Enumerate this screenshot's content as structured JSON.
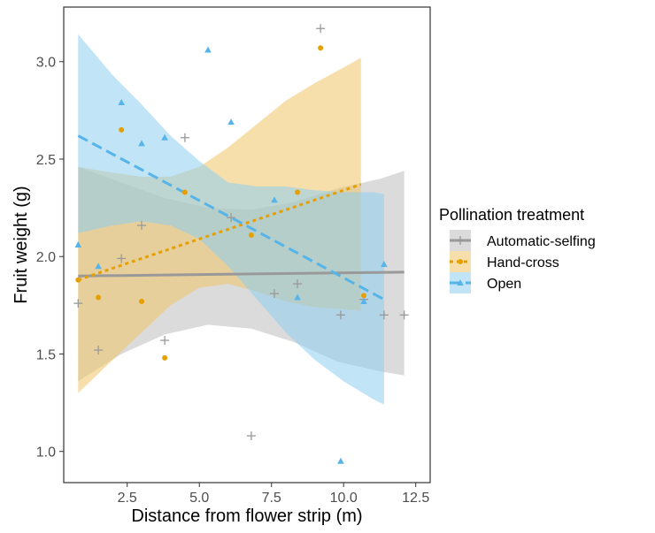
{
  "chart_data": {
    "type": "scatter",
    "xlabel": "Distance from flower strip (m)",
    "ylabel": "Fruit weight (g)",
    "xlim": [
      0.3,
      13.0
    ],
    "ylim": [
      0.84,
      3.28
    ],
    "x_ticks": [
      "2.5",
      "5.0",
      "7.5",
      "10.0",
      "12.5"
    ],
    "y_ticks": [
      "1.0",
      "1.5",
      "2.0",
      "2.5",
      "3.0"
    ],
    "grid": false,
    "legend": {
      "title": "Pollination treatment",
      "placement": "right"
    },
    "series": [
      {
        "name": "Automatic-selfing",
        "color": "#999999",
        "band_color": "#bdbdbd",
        "marker": "plus",
        "line_style": "solid",
        "points": [
          [
            0.8,
            1.76
          ],
          [
            1.5,
            1.52
          ],
          [
            2.3,
            1.99
          ],
          [
            3.0,
            2.16
          ],
          [
            3.8,
            1.57
          ],
          [
            4.5,
            2.61
          ],
          [
            6.1,
            2.2
          ],
          [
            6.8,
            1.08
          ],
          [
            7.6,
            1.81
          ],
          [
            8.4,
            1.86
          ],
          [
            9.2,
            3.17
          ],
          [
            9.9,
            1.7
          ],
          [
            10.7,
            1.78
          ],
          [
            11.4,
            1.7
          ],
          [
            12.1,
            1.7
          ]
        ],
        "fit": [
          [
            0.8,
            1.9
          ],
          [
            12.1,
            1.92
          ]
        ],
        "band": [
          [
            0.8,
            1.36,
            2.46
          ],
          [
            2.3,
            1.5,
            2.38
          ],
          [
            3.8,
            1.6,
            2.3
          ],
          [
            5.3,
            1.65,
            2.25
          ],
          [
            6.8,
            1.63,
            2.24
          ],
          [
            8.3,
            1.56,
            2.28
          ],
          [
            9.8,
            1.46,
            2.35
          ],
          [
            11.3,
            1.41,
            2.4
          ],
          [
            12.1,
            1.39,
            2.44
          ]
        ]
      },
      {
        "name": "Hand-cross",
        "color": "#e69f00",
        "band_color": "#f0c566",
        "marker": "circle",
        "line_style": "dotted",
        "points": [
          [
            0.8,
            1.88
          ],
          [
            1.5,
            1.79
          ],
          [
            2.3,
            2.65
          ],
          [
            3.0,
            1.77
          ],
          [
            3.8,
            1.48
          ],
          [
            4.5,
            2.33
          ],
          [
            6.8,
            2.11
          ],
          [
            8.4,
            2.33
          ],
          [
            9.2,
            3.07
          ],
          [
            10.7,
            1.8
          ]
        ],
        "fit": [
          [
            0.8,
            1.88
          ],
          [
            10.6,
            2.37
          ]
        ],
        "band": [
          [
            0.8,
            1.3,
            2.46
          ],
          [
            2.0,
            1.47,
            2.43
          ],
          [
            3.0,
            1.61,
            2.41
          ],
          [
            4.0,
            1.75,
            2.41
          ],
          [
            5.0,
            1.84,
            2.46
          ],
          [
            6.0,
            1.86,
            2.56
          ],
          [
            7.0,
            1.82,
            2.68
          ],
          [
            8.0,
            1.77,
            2.8
          ],
          [
            9.0,
            1.74,
            2.89
          ],
          [
            10.0,
            1.73,
            2.97
          ],
          [
            10.6,
            1.72,
            3.02
          ]
        ]
      },
      {
        "name": "Open",
        "color": "#56b4e9",
        "band_color": "#8ecdf0",
        "marker": "triangle",
        "line_style": "dashed",
        "points": [
          [
            0.8,
            2.06
          ],
          [
            1.5,
            1.95
          ],
          [
            2.3,
            2.79
          ],
          [
            3.0,
            2.58
          ],
          [
            3.8,
            2.61
          ],
          [
            5.3,
            3.06
          ],
          [
            6.1,
            2.69
          ],
          [
            7.6,
            2.29
          ],
          [
            8.4,
            1.79
          ],
          [
            9.9,
            0.95
          ],
          [
            10.7,
            1.77
          ],
          [
            11.4,
            1.96
          ]
        ],
        "fit": [
          [
            0.8,
            2.62
          ],
          [
            11.4,
            1.78
          ]
        ],
        "band": [
          [
            0.8,
            2.12,
            3.14
          ],
          [
            2.0,
            2.16,
            2.93
          ],
          [
            3.0,
            2.18,
            2.78
          ],
          [
            4.0,
            2.16,
            2.62
          ],
          [
            5.0,
            2.09,
            2.49
          ],
          [
            6.0,
            1.95,
            2.38
          ],
          [
            7.0,
            1.78,
            2.36
          ],
          [
            8.0,
            1.61,
            2.36
          ],
          [
            9.0,
            1.47,
            2.34
          ],
          [
            10.0,
            1.36,
            2.33
          ],
          [
            11.0,
            1.27,
            2.33
          ],
          [
            11.4,
            1.24,
            2.32
          ]
        ]
      }
    ]
  }
}
